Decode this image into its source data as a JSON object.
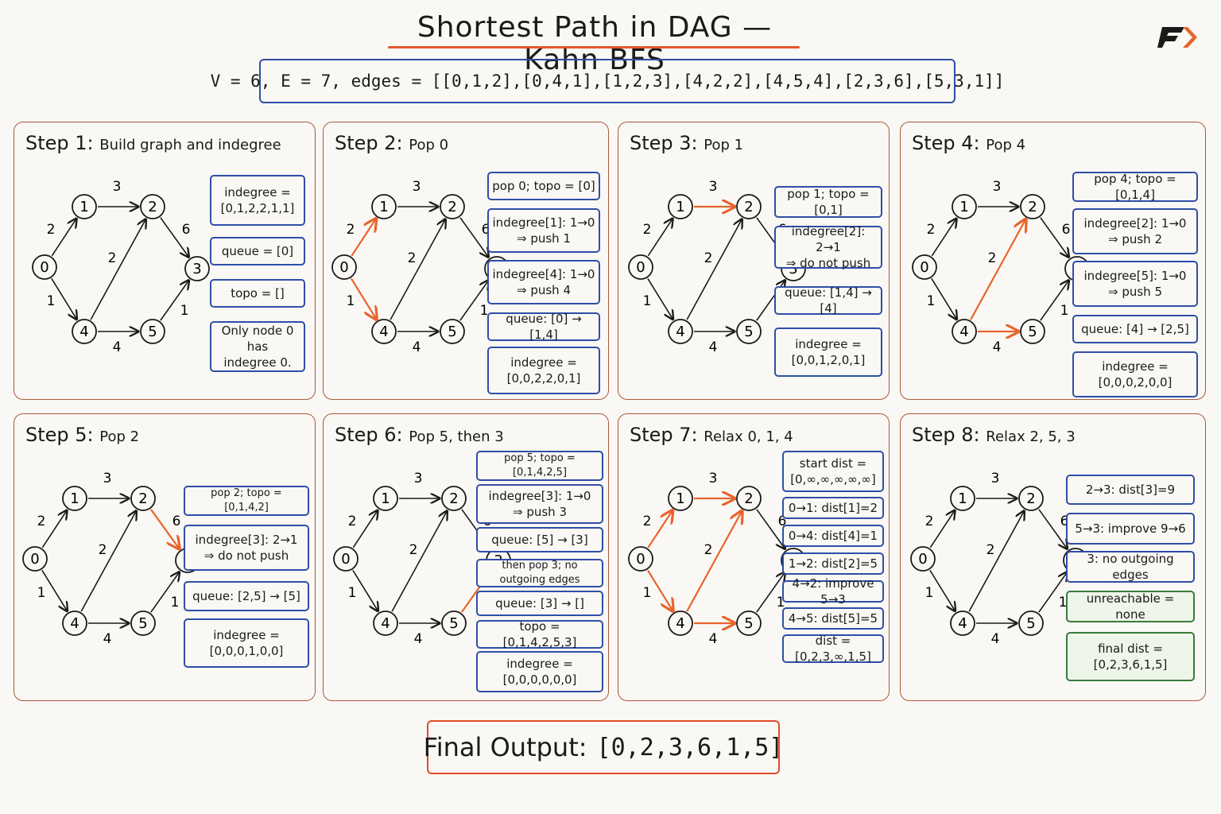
{
  "title": "Shortest Path in DAG — Kahn BFS",
  "input": "V = 6, E = 7, edges = [[0,1,2],[0,4,1],[1,2,3],[4,2,2],[4,5,4],[2,3,6],[5,3,1]]",
  "colors": {
    "normal": "#1a1a1a",
    "highlight": "#e8642c",
    "box_border": "#2f4ea8",
    "panel_border": "#a85a3a",
    "final_border": "#e24a2c",
    "green_border": "#3b7a3b"
  },
  "logo_icon": "fp-logo-icon",
  "graph": {
    "nodes": [
      "0",
      "1",
      "2",
      "3",
      "4",
      "5"
    ],
    "edges": [
      {
        "from": 0,
        "to": 1,
        "w": "2"
      },
      {
        "from": 0,
        "to": 4,
        "w": "1"
      },
      {
        "from": 1,
        "to": 2,
        "w": "3"
      },
      {
        "from": 4,
        "to": 2,
        "w": "2"
      },
      {
        "from": 4,
        "to": 5,
        "w": "4"
      },
      {
        "from": 2,
        "to": 3,
        "w": "6"
      },
      {
        "from": 5,
        "to": 3,
        "w": "1"
      }
    ]
  },
  "steps": [
    {
      "label": "Step 1:",
      "subtitle": "Build graph and indegree",
      "highlight": [],
      "boxes": [
        "indegree =\n[0,1,2,2,1,1]",
        "queue = [0]",
        "topo = []",
        "Only node 0 has\nindegree 0."
      ]
    },
    {
      "label": "Step 2:",
      "subtitle": "Pop 0",
      "highlight": [
        "0-1",
        "0-4"
      ],
      "boxes": [
        "pop 0; topo = [0]",
        "indegree[1]: 1→0\n⇒ push 1",
        "indegree[4]: 1→0\n⇒ push 4",
        "queue: [0] → [1,4]",
        "indegree =\n[0,0,2,2,0,1]"
      ]
    },
    {
      "label": "Step 3:",
      "subtitle": "Pop 1",
      "highlight": [
        "1-2"
      ],
      "boxes": [
        "pop 1; topo = [0,1]",
        "indegree[2]: 2→1\n⇒ do not push",
        "queue: [1,4] → [4]",
        "indegree =\n[0,0,1,2,0,1]"
      ]
    },
    {
      "label": "Step 4:",
      "subtitle": "Pop 4",
      "highlight": [
        "4-2",
        "4-5"
      ],
      "boxes": [
        "pop 4; topo = [0,1,4]",
        "indegree[2]: 1→0\n⇒ push 2",
        "indegree[5]: 1→0\n⇒ push 5",
        "queue: [4] → [2,5]",
        "indegree =\n[0,0,0,2,0,0]"
      ]
    },
    {
      "label": "Step 5:",
      "subtitle": "Pop 2",
      "highlight": [
        "2-3"
      ],
      "boxes": [
        "pop 2; topo = [0,1,4,2]",
        "indegree[3]: 2→1\n⇒ do not push",
        "queue: [2,5] → [5]",
        "indegree =\n[0,0,0,1,0,0]"
      ]
    },
    {
      "label": "Step 6:",
      "subtitle": "Pop 5, then 3",
      "highlight": [
        "5-3"
      ],
      "boxes": [
        "pop 5; topo = [0,1,4,2,5]",
        "indegree[3]: 1→0\n⇒ push 3",
        "queue: [5] → [3]",
        "then pop 3; no outgoing edges",
        "queue: [3] → []",
        "topo = [0,1,4,2,5,3]",
        "indegree =\n[0,0,0,0,0,0]"
      ]
    },
    {
      "label": "Step 7:",
      "subtitle": "Relax 0, 1, 4",
      "highlight": [
        "0-1",
        "0-4",
        "1-2",
        "4-2",
        "4-5"
      ],
      "boxes": [
        "start dist =\n[0,∞,∞,∞,∞,∞]",
        "0→1: dist[1]=2",
        "0→4: dist[4]=1",
        "1→2: dist[2]=5",
        "4→2: improve 5→3",
        "4→5: dist[5]=5",
        "dist = [0,2,3,∞,1,5]"
      ]
    },
    {
      "label": "Step 8:",
      "subtitle": "Relax 2, 5, 3",
      "highlight": [],
      "boxes": [
        "2→3: dist[3]=9",
        "5→3: improve 9→6",
        "3: no outgoing edges",
        "unreachable = none",
        "final dist =\n[0,2,3,6,1,5]"
      ]
    }
  ],
  "final": {
    "label": "Final Output:",
    "value": "[0,2,3,6,1,5]"
  }
}
